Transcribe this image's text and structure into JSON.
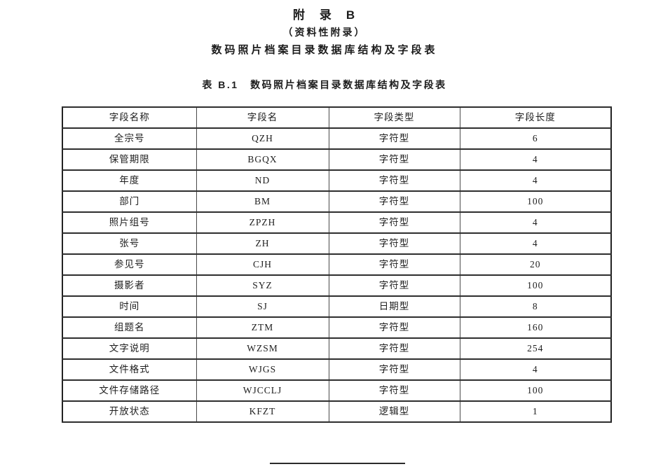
{
  "page": {
    "appendix_label": "附　录　B",
    "appendix_type": "（资料性附录）",
    "appendix_title": "数码照片档案目录数据库结构及字段表",
    "table_caption": "表 B.1　数码照片档案目录数据库结构及字段表"
  },
  "table": {
    "headers": [
      "字段名称",
      "字段名",
      "字段类型",
      "字段长度"
    ],
    "rows": [
      [
        "全宗号",
        "QZH",
        "字符型",
        "6"
      ],
      [
        "保管期限",
        "BGQX",
        "字符型",
        "4"
      ],
      [
        "年度",
        "ND",
        "字符型",
        "4"
      ],
      [
        "部门",
        "BM",
        "字符型",
        "100"
      ],
      [
        "照片组号",
        "ZPZH",
        "字符型",
        "4"
      ],
      [
        "张号",
        "ZH",
        "字符型",
        "4"
      ],
      [
        "参见号",
        "CJH",
        "字符型",
        "20"
      ],
      [
        "摄影者",
        "SYZ",
        "字符型",
        "100"
      ],
      [
        "时间",
        "SJ",
        "日期型",
        "8"
      ],
      [
        "组题名",
        "ZTM",
        "字符型",
        "160"
      ],
      [
        "文字说明",
        "WZSM",
        "字符型",
        "254"
      ],
      [
        "文件格式",
        "WJGS",
        "字符型",
        "4"
      ],
      [
        "文件存储路径",
        "WJCCLJ",
        "字符型",
        "100"
      ],
      [
        "开放状态",
        "KFZT",
        "逻辑型",
        "1"
      ]
    ]
  },
  "colors": {
    "text": "#1a1a1a",
    "border": "#2e2e2e",
    "background": "#ffffff"
  }
}
